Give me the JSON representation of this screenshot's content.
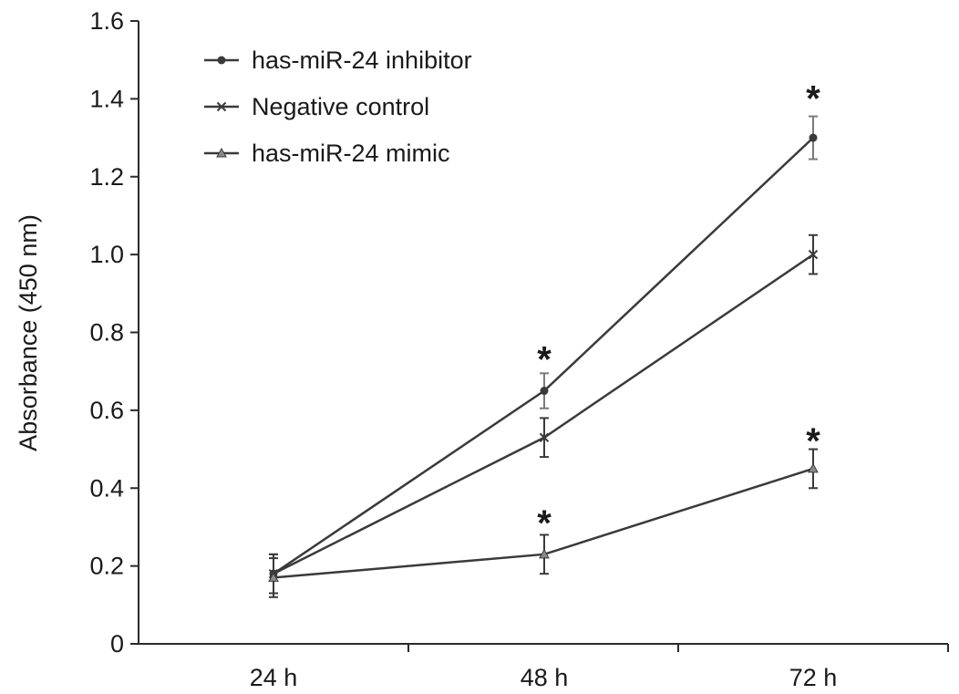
{
  "chart_data": {
    "type": "line",
    "categories": [
      "24 h",
      "48 h",
      "72 h"
    ],
    "ylabel": "Absorbance (450 nm)",
    "xlabel": "",
    "title": "",
    "ylim": [
      0,
      1.6
    ],
    "yticks": [
      "0",
      "0.2",
      "0.4",
      "0.6",
      "0.8",
      "1.0",
      "1.2",
      "1.4",
      "1.6"
    ],
    "grid": false,
    "legend_position": "top-left",
    "series": [
      {
        "name": "has-miR-24 inhibitor",
        "marker": "circle",
        "color": "#3a3a3a",
        "values": [
          0.18,
          0.65,
          1.3
        ],
        "errors": [
          0.05,
          0.045,
          0.055
        ]
      },
      {
        "name": "Negative control",
        "marker": "x",
        "color": "#3a3a3a",
        "values": [
          0.18,
          0.53,
          1.0
        ],
        "errors": [
          0.05,
          0.05,
          0.05
        ]
      },
      {
        "name": "has-miR-24 mimic",
        "marker": "triangle",
        "color": "#3a3a3a",
        "values": [
          0.17,
          0.23,
          0.45
        ],
        "errors": [
          0.05,
          0.05,
          0.05
        ]
      }
    ],
    "annotations": [
      {
        "text": "*",
        "category": "48 h",
        "y": 0.76
      },
      {
        "text": "*",
        "category": "72 h",
        "y": 1.43
      },
      {
        "text": "*",
        "category": "48 h",
        "y": 0.34
      },
      {
        "text": "*",
        "category": "72 h",
        "y": 0.55
      }
    ]
  }
}
